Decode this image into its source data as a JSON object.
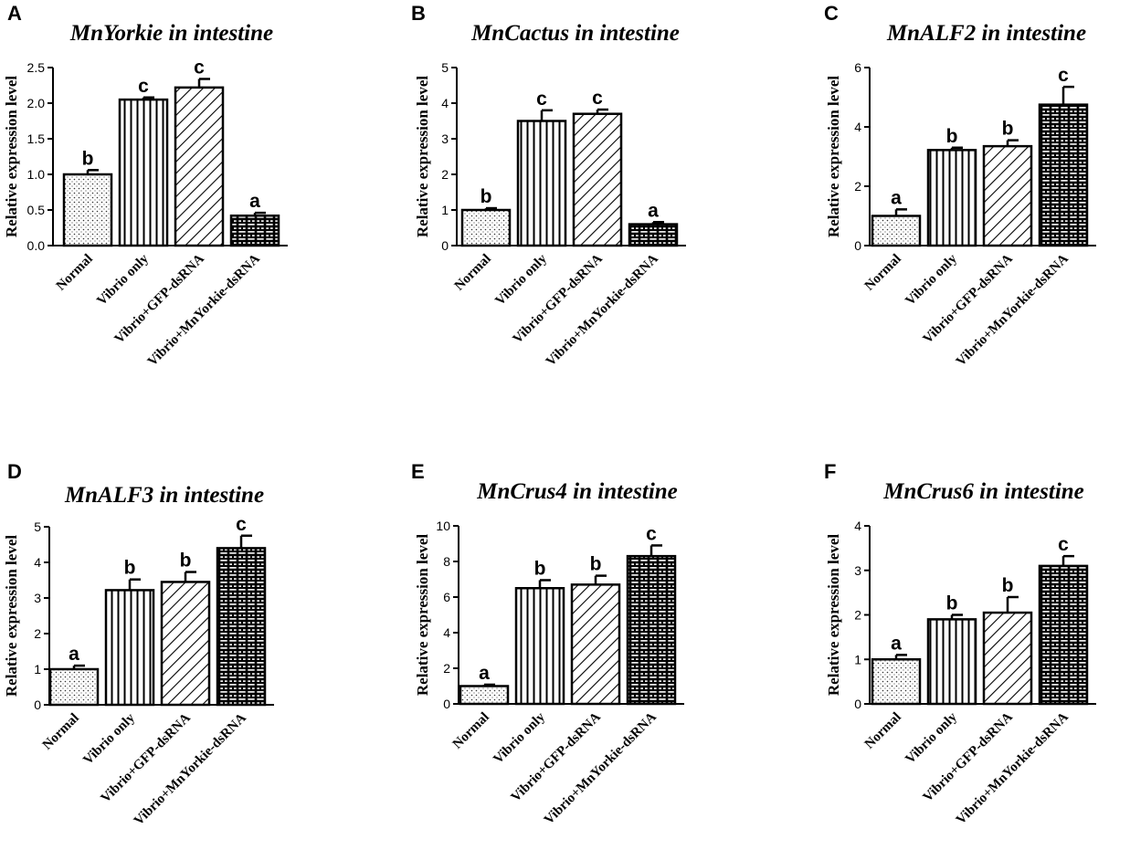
{
  "figure": {
    "y_axis_label": "Relative expression level",
    "category_labels": [
      "Normal",
      "Vibrio only",
      "Vibrio+GFP-dsRNA",
      "Vibrio+MnYorkie-dsRNA"
    ],
    "patterns": [
      "dots",
      "vertical-lines",
      "diagonal-lines",
      "bricks"
    ]
  },
  "chart_data": [
    {
      "panel": "A",
      "type": "bar",
      "title": "MnYorkie in intestine",
      "categories": [
        "Normal",
        "Vibrio only",
        "Vibrio+GFP-dsRNA",
        "Vibrio+MnYorkie-dsRNA"
      ],
      "values": [
        1.0,
        2.05,
        2.22,
        0.42
      ],
      "errors": [
        0.06,
        0.03,
        0.12,
        0.04
      ],
      "significance": [
        "b",
        "c",
        "c",
        "a"
      ],
      "ylim": [
        0,
        2.5
      ],
      "yticks": [
        0.0,
        0.5,
        1.0,
        1.5,
        2.0,
        2.5
      ],
      "ytick_labels": [
        "0.0",
        "0.5",
        "1.0",
        "1.5",
        "2.0",
        "2.5"
      ],
      "ylabel": "Relative expression level"
    },
    {
      "panel": "B",
      "type": "bar",
      "title": "MnCactus in intestine",
      "categories": [
        "Normal",
        "Vibrio only",
        "Vibrio+GFP-dsRNA",
        "Vibrio+MnYorkie-dsRNA"
      ],
      "values": [
        1.0,
        3.5,
        3.7,
        0.6
      ],
      "errors": [
        0.05,
        0.3,
        0.12,
        0.06
      ],
      "significance": [
        "b",
        "c",
        "c",
        "a"
      ],
      "ylim": [
        0,
        5
      ],
      "yticks": [
        0,
        1,
        2,
        3,
        4,
        5
      ],
      "ytick_labels": [
        "0",
        "1",
        "2",
        "3",
        "4",
        "5"
      ],
      "ylabel": "Relative expression level"
    },
    {
      "panel": "C",
      "type": "bar",
      "title": "MnALF2 in intestine",
      "categories": [
        "Normal",
        "Vibrio only",
        "Vibrio+GFP-dsRNA",
        "Vibrio+MnYorkie-dsRNA"
      ],
      "values": [
        1.0,
        3.22,
        3.35,
        4.75
      ],
      "errors": [
        0.22,
        0.08,
        0.2,
        0.6
      ],
      "significance": [
        "a",
        "b",
        "b",
        "c"
      ],
      "ylim": [
        0,
        6
      ],
      "yticks": [
        0,
        2,
        4,
        6
      ],
      "ytick_labels": [
        "0",
        "2",
        "4",
        "6"
      ],
      "ylabel": "Relative expression level"
    },
    {
      "panel": "D",
      "type": "bar",
      "title": "MnALF3 in intestine",
      "categories": [
        "Normal",
        "Vibrio only",
        "Vibrio+GFP-dsRNA",
        "Vibrio+MnYorkie-dsRNA"
      ],
      "values": [
        1.0,
        3.22,
        3.45,
        4.4
      ],
      "errors": [
        0.1,
        0.3,
        0.28,
        0.35
      ],
      "significance": [
        "a",
        "b",
        "b",
        "c"
      ],
      "ylim": [
        0,
        5
      ],
      "yticks": [
        0,
        1,
        2,
        3,
        4,
        5
      ],
      "ytick_labels": [
        "0",
        "1",
        "2",
        "3",
        "4",
        "5"
      ],
      "ylabel": "Relative expression level"
    },
    {
      "panel": "E",
      "type": "bar",
      "title": "MnCrus4 in intestine",
      "categories": [
        "Normal",
        "Vibrio only",
        "Vibrio+GFP-dsRNA",
        "Vibrio+MnYorkie-dsRNA"
      ],
      "values": [
        1.0,
        6.5,
        6.7,
        8.3
      ],
      "errors": [
        0.08,
        0.45,
        0.5,
        0.6
      ],
      "significance": [
        "a",
        "b",
        "b",
        "c"
      ],
      "ylim": [
        0,
        10
      ],
      "yticks": [
        0,
        2,
        4,
        6,
        8,
        10
      ],
      "ytick_labels": [
        "0",
        "2",
        "4",
        "6",
        "8",
        "10"
      ],
      "ylabel": "Relative expression level"
    },
    {
      "panel": "F",
      "type": "bar",
      "title": "MnCrus6 in intestine",
      "categories": [
        "Normal",
        "Vibrio only",
        "Vibrio+GFP-dsRNA",
        "Vibrio+MnYorkie-dsRNA"
      ],
      "values": [
        1.0,
        1.9,
        2.05,
        3.1
      ],
      "errors": [
        0.1,
        0.1,
        0.35,
        0.22
      ],
      "significance": [
        "a",
        "b",
        "b",
        "c"
      ],
      "ylim": [
        0,
        4
      ],
      "yticks": [
        0,
        1,
        2,
        3,
        4
      ],
      "ytick_labels": [
        "0",
        "1",
        "2",
        "3",
        "4"
      ],
      "ylabel": "Relative expression level"
    }
  ]
}
